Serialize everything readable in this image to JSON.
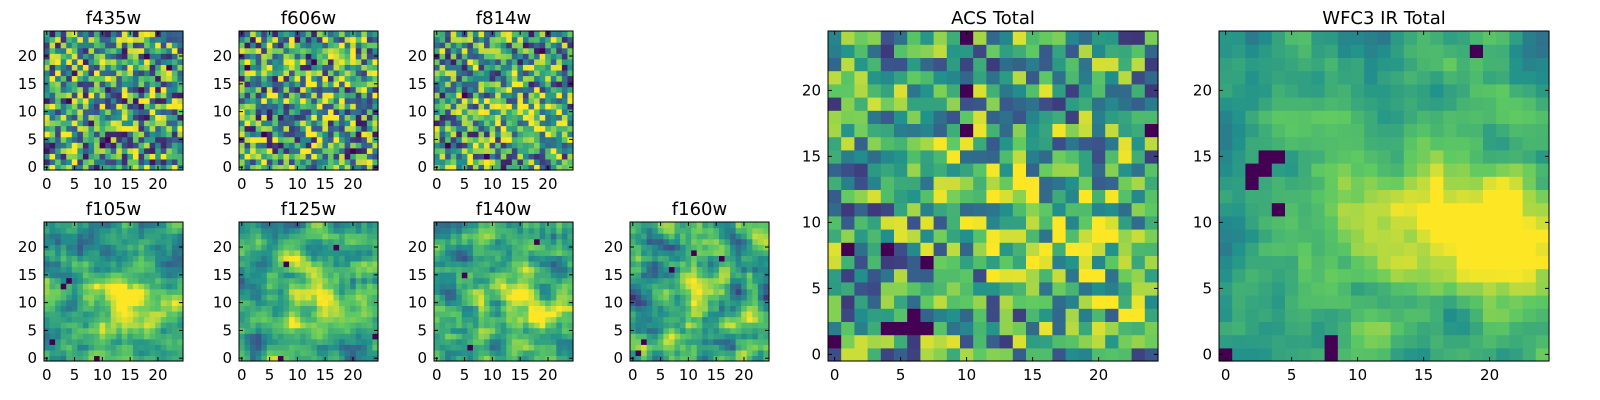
{
  "figure": {
    "colormap": "viridis",
    "colormap_stops": [
      "#440154",
      "#3b528b",
      "#21918c",
      "#5ec962",
      "#fde725"
    ]
  },
  "chart_data": [
    {
      "type": "heatmap",
      "title": "f435w",
      "grid_size": 25,
      "xlim": [
        0,
        24
      ],
      "ylim": [
        0,
        24
      ],
      "xticks": [
        0,
        5,
        10,
        15,
        20
      ],
      "yticks": [
        0,
        5,
        10,
        15,
        20
      ],
      "pattern": "noise",
      "noise": 0.5,
      "blobs": [],
      "dark_spots": [
        [
          10,
          4
        ],
        [
          11,
          5
        ],
        [
          18,
          20
        ],
        [
          22,
          18
        ],
        [
          4,
          12
        ]
      ]
    },
    {
      "type": "heatmap",
      "title": "f606w",
      "grid_size": 25,
      "xlim": [
        0,
        24
      ],
      "ylim": [
        0,
        24
      ],
      "xticks": [
        0,
        5,
        10,
        15,
        20
      ],
      "yticks": [
        0,
        5,
        10,
        15,
        20
      ],
      "pattern": "noise",
      "noise": 0.5,
      "blobs": [
        [
          13,
          11,
          4,
          0.15
        ]
      ],
      "dark_spots": [
        [
          4,
          6
        ],
        [
          1,
          18
        ],
        [
          20,
          3
        ],
        [
          13,
          19
        ]
      ]
    },
    {
      "type": "heatmap",
      "title": "f814w",
      "grid_size": 25,
      "xlim": [
        0,
        24
      ],
      "ylim": [
        0,
        24
      ],
      "xticks": [
        0,
        5,
        10,
        15,
        20
      ],
      "yticks": [
        0,
        5,
        10,
        15,
        20
      ],
      "pattern": "noise",
      "noise": 0.48,
      "blobs": [
        [
          21,
          7,
          3,
          0.25
        ],
        [
          13,
          10,
          4,
          0.15
        ]
      ],
      "dark_spots": [
        [
          5,
          13
        ],
        [
          2,
          4
        ],
        [
          19,
          21
        ],
        [
          9,
          2
        ]
      ]
    },
    {
      "type": "heatmap",
      "title": "f105w",
      "grid_size": 25,
      "xlim": [
        0,
        24
      ],
      "ylim": [
        0,
        24
      ],
      "xticks": [
        0,
        5,
        10,
        15,
        20
      ],
      "yticks": [
        0,
        5,
        10,
        15,
        20
      ],
      "pattern": "smooth",
      "noise": 0.28,
      "blobs": [
        [
          13,
          10,
          5,
          0.35
        ],
        [
          21,
          8,
          3,
          0.25
        ]
      ],
      "dark_spots": [
        [
          3,
          13
        ],
        [
          4,
          14
        ],
        [
          9,
          0
        ],
        [
          1,
          3
        ]
      ]
    },
    {
      "type": "heatmap",
      "title": "f125w",
      "grid_size": 25,
      "xlim": [
        0,
        24
      ],
      "ylim": [
        0,
        24
      ],
      "xticks": [
        0,
        5,
        10,
        15,
        20
      ],
      "yticks": [
        0,
        5,
        10,
        15,
        20
      ],
      "pattern": "smooth",
      "noise": 0.28,
      "blobs": [
        [
          12,
          12,
          5,
          0.35
        ],
        [
          20,
          8,
          3,
          0.2
        ]
      ],
      "dark_spots": [
        [
          8,
          17
        ],
        [
          24,
          4
        ],
        [
          7,
          0
        ],
        [
          17,
          20
        ]
      ]
    },
    {
      "type": "heatmap",
      "title": "f140w",
      "grid_size": 25,
      "xlim": [
        0,
        24
      ],
      "ylim": [
        0,
        24
      ],
      "xticks": [
        0,
        5,
        10,
        15,
        20
      ],
      "yticks": [
        0,
        5,
        10,
        15,
        20
      ],
      "pattern": "smooth",
      "noise": 0.3,
      "blobs": [
        [
          14,
          9,
          5,
          0.3
        ],
        [
          21,
          8,
          3,
          0.25
        ]
      ],
      "dark_spots": [
        [
          5,
          15
        ],
        [
          6,
          2
        ],
        [
          18,
          21
        ]
      ]
    },
    {
      "type": "heatmap",
      "title": "f160w",
      "grid_size": 25,
      "xlim": [
        0,
        24
      ],
      "ylim": [
        0,
        24
      ],
      "xticks": [
        0,
        5,
        10,
        15,
        20
      ],
      "yticks": [
        0,
        5,
        10,
        15,
        20
      ],
      "pattern": "smooth",
      "noise": 0.33,
      "blobs": [
        [
          12,
          10,
          4,
          0.2
        ],
        [
          22,
          7,
          3,
          0.35
        ]
      ],
      "dark_spots": [
        [
          1,
          1
        ],
        [
          2,
          3
        ],
        [
          16,
          18
        ],
        [
          7,
          16
        ],
        [
          11,
          19
        ]
      ]
    },
    {
      "type": "heatmap",
      "title": "ACS Total",
      "grid_size": 25,
      "xlim": [
        0,
        24
      ],
      "ylim": [
        0,
        24
      ],
      "xticks": [
        0,
        5,
        10,
        15,
        20
      ],
      "yticks": [
        0,
        5,
        10,
        15,
        20
      ],
      "pattern": "noise",
      "noise": 0.4,
      "blobs": [
        [
          12,
          12,
          4,
          0.2
        ],
        [
          21,
          8,
          4,
          0.25
        ]
      ],
      "dark_spots": [
        [
          4,
          2
        ],
        [
          5,
          2
        ],
        [
          6,
          2
        ],
        [
          7,
          2
        ],
        [
          6,
          3
        ],
        [
          10,
          17
        ],
        [
          10,
          20
        ],
        [
          4,
          8
        ],
        [
          7,
          7
        ],
        [
          1,
          8
        ],
        [
          24,
          17
        ],
        [
          10,
          24
        ],
        [
          0,
          1
        ]
      ]
    },
    {
      "type": "heatmap",
      "title": "WFC3 IR Total",
      "grid_size": 25,
      "xlim": [
        0,
        24
      ],
      "ylim": [
        0,
        24
      ],
      "xticks": [
        0,
        5,
        10,
        15,
        20
      ],
      "yticks": [
        0,
        5,
        10,
        15,
        20
      ],
      "pattern": "smooth",
      "noise": 0.16,
      "blobs": [
        [
          13,
          11,
          5,
          0.35
        ],
        [
          21,
          9,
          4,
          0.35
        ],
        [
          23,
          7,
          3,
          0.2
        ]
      ],
      "dark_spots": [
        [
          3,
          15
        ],
        [
          4,
          15
        ],
        [
          3,
          14
        ],
        [
          2,
          14
        ],
        [
          2,
          13
        ],
        [
          8,
          1
        ],
        [
          8,
          0
        ],
        [
          0,
          0
        ],
        [
          4,
          11
        ],
        [
          19,
          23
        ]
      ]
    }
  ]
}
